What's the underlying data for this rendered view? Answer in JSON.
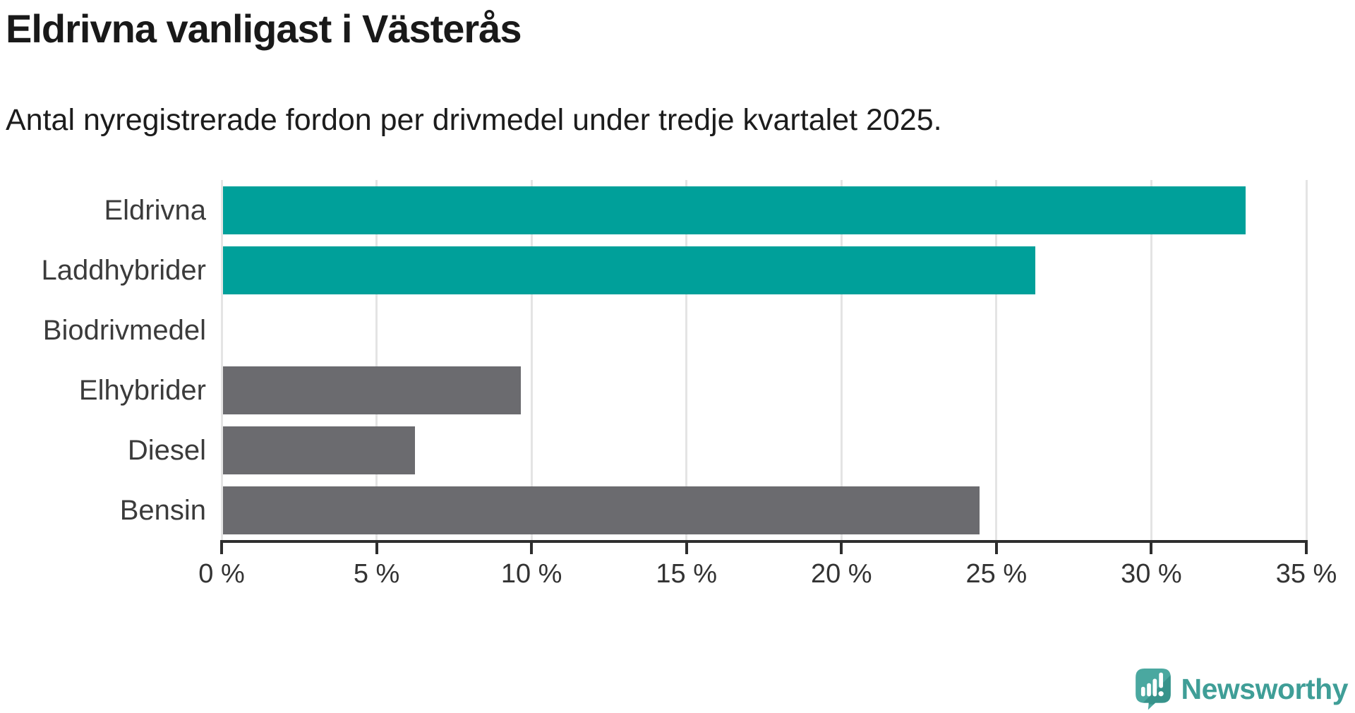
{
  "title": "Eldrivna vanligast i Västerås",
  "subtitle": "Antal nyregistrerade fordon per drivmedel under tredje kvartalet 2025.",
  "chart_data": {
    "type": "bar",
    "orientation": "horizontal",
    "title": "Eldrivna vanligast i Västerås",
    "subtitle": "Antal nyregistrerade fordon per drivmedel under tredje kvartalet 2025.",
    "categories": [
      "Eldrivna",
      "Laddhybrider",
      "Biodrivmedel",
      "Elhybrider",
      "Diesel",
      "Bensin"
    ],
    "values": [
      33.0,
      26.2,
      0,
      9.6,
      6.2,
      24.4
    ],
    "unit": "%",
    "xlim": [
      0,
      35
    ],
    "x_ticks": [
      0,
      5,
      10,
      15,
      20,
      25,
      30,
      35
    ],
    "x_tick_labels": [
      "0 %",
      "5 %",
      "10 %",
      "15 %",
      "20 %",
      "25 %",
      "30 %",
      "35 %"
    ],
    "grid": "vertical-only",
    "legend": "none",
    "bar_colors": [
      "#00a09a",
      "#00a09a",
      "#6b6b6f",
      "#6b6b6f",
      "#6b6b6f",
      "#6b6b6f"
    ],
    "highlight_color": "#00a09a",
    "default_bar_color": "#6b6b6f"
  },
  "colors": {
    "grid": "#e4e4e4",
    "axis": "#2e2e2e",
    "title": "#191919",
    "label": "#3b3b3b"
  },
  "branding": {
    "logo_text": "Newsworthy",
    "logo_text_color": "#3f9e97",
    "icon_color": "#4aa8a0",
    "icon_shade_color": "#37938b"
  }
}
